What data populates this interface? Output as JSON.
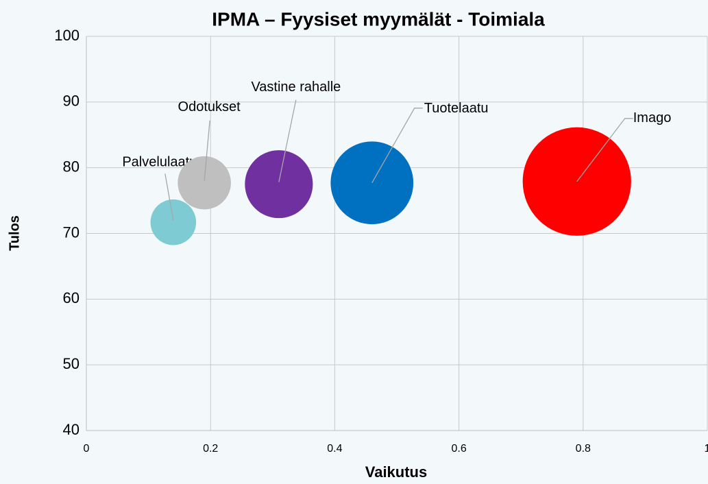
{
  "chart_data": {
    "type": "bubble",
    "title": "IPMA – Fyysiset myymälät - Toimiala",
    "xlabel": "Vaikutus",
    "ylabel": "Tulos",
    "xlim": [
      0,
      1
    ],
    "xticks": [
      0,
      0.2,
      0.4,
      0.6,
      0.8,
      1
    ],
    "ylim": [
      40,
      100
    ],
    "yticks": [
      40,
      50,
      60,
      70,
      80,
      90,
      100
    ],
    "grid": true,
    "series": [
      {
        "name": "Palvelulaatu",
        "color": "#7ecbd3",
        "x": [
          0.14
        ],
        "values": [
          71.7
        ],
        "sizes": [
          0.14
        ]
      },
      {
        "name": "Odotukset",
        "color": "#bfbfbf",
        "x": [
          0.19
        ],
        "values": [
          77.7
        ],
        "sizes": [
          0.19
        ]
      },
      {
        "name": "Vastine rahalle",
        "color": "#7030a0",
        "x": [
          0.31
        ],
        "values": [
          77.5
        ],
        "sizes": [
          0.31
        ]
      },
      {
        "name": "Tuotelaatu",
        "color": "#0070c0",
        "x": [
          0.46
        ],
        "values": [
          77.7
        ],
        "sizes": [
          0.46
        ]
      },
      {
        "name": "Imago",
        "color": "#ff0000",
        "x": [
          0.79
        ],
        "values": [
          77.9
        ],
        "sizes": [
          0.79
        ]
      }
    ]
  }
}
